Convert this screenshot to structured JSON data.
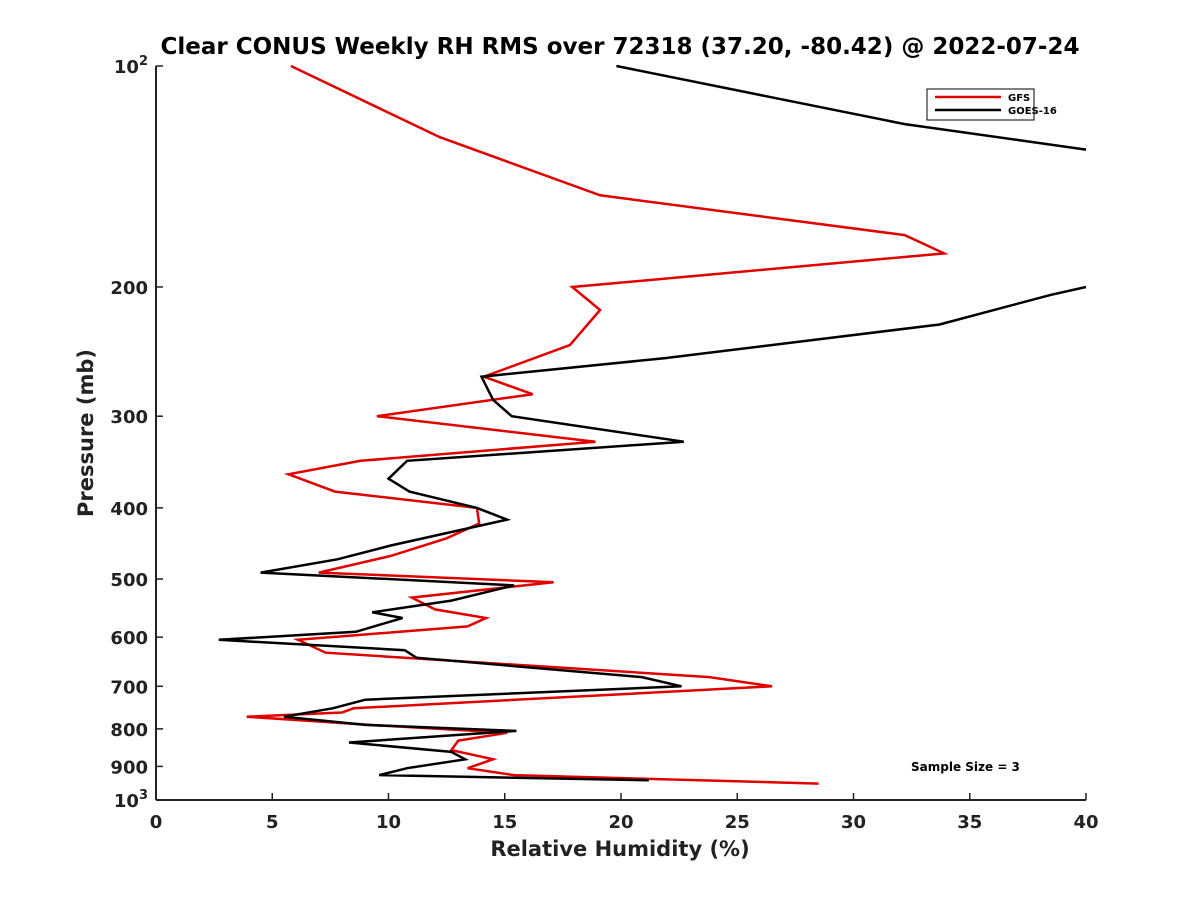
{
  "chart_data": {
    "type": "line",
    "title": "Clear CONUS Weekly RH RMS over 72318 (37.20, -80.42) @ 2022-07-24",
    "xlabel": "Relative Humidity (%)",
    "ylabel": "Pressure (mb)",
    "xlim": [
      0,
      40
    ],
    "ylim": [
      100,
      1000
    ],
    "y_scale": "log",
    "y_reversed": true,
    "x_ticks": [
      "0",
      "5",
      "10",
      "15",
      "20",
      "25",
      "30",
      "35",
      "40"
    ],
    "y_ticks": [
      {
        "value": 100,
        "base": "10",
        "exp": "2"
      },
      {
        "value": 200,
        "label": "200"
      },
      {
        "value": 300,
        "label": "300"
      },
      {
        "value": 400,
        "label": "400"
      },
      {
        "value": 500,
        "label": "500"
      },
      {
        "value": 600,
        "label": "600"
      },
      {
        "value": 700,
        "label": "700"
      },
      {
        "value": 800,
        "label": "800"
      },
      {
        "value": 900,
        "label": "900"
      },
      {
        "value": 1000,
        "base": "10",
        "exp": "3"
      }
    ],
    "legend_position": "top-right",
    "annotation": "Sample Size = 3",
    "series": [
      {
        "name": "GFS",
        "color": "#e00000",
        "points": [
          [
            5.8,
            100
          ],
          [
            12.2,
            125
          ],
          [
            19.1,
            150
          ],
          [
            32.2,
            170
          ],
          [
            33.9,
            180
          ],
          [
            17.9,
            200
          ],
          [
            19.1,
            215
          ],
          [
            17.8,
            240
          ],
          [
            14.1,
            265
          ],
          [
            16.2,
            280
          ],
          [
            9.5,
            300
          ],
          [
            18.9,
            325
          ],
          [
            8.8,
            345
          ],
          [
            5.7,
            360
          ],
          [
            7.7,
            380
          ],
          [
            13.8,
            400
          ],
          [
            13.9,
            420
          ],
          [
            12.5,
            440
          ],
          [
            10.1,
            465
          ],
          [
            7.0,
            490
          ],
          [
            17.1,
            505
          ],
          [
            11.0,
            530
          ],
          [
            12.0,
            550
          ],
          [
            14.2,
            565
          ],
          [
            13.4,
            580
          ],
          [
            6.1,
            605
          ],
          [
            7.3,
            630
          ],
          [
            23.8,
            680
          ],
          [
            26.5,
            700
          ],
          [
            8.5,
            750
          ],
          [
            8.0,
            760
          ],
          [
            3.9,
            770
          ],
          [
            9.2,
            790
          ],
          [
            15.1,
            810
          ],
          [
            13.0,
            830
          ],
          [
            12.7,
            855
          ],
          [
            14.5,
            880
          ],
          [
            13.4,
            905
          ],
          [
            15.4,
            925
          ],
          [
            28.5,
            950
          ]
        ]
      },
      {
        "name": "GOES-16",
        "color": "#000000",
        "points": [
          [
            19.8,
            100
          ],
          [
            32.2,
            120
          ],
          [
            40.0,
            130
          ],
          null,
          [
            40.0,
            200
          ],
          [
            38.5,
            205
          ],
          [
            33.7,
            225
          ],
          [
            21.9,
            250
          ],
          [
            14.0,
            265
          ],
          [
            14.5,
            285
          ],
          [
            15.3,
            300
          ],
          [
            22.7,
            325
          ],
          [
            10.8,
            345
          ],
          [
            10.0,
            365
          ],
          [
            10.9,
            380
          ],
          [
            13.8,
            400
          ],
          [
            15.1,
            415
          ],
          [
            10.1,
            450
          ],
          [
            7.8,
            470
          ],
          [
            4.5,
            490
          ],
          [
            15.4,
            510
          ],
          [
            12.7,
            535
          ],
          [
            9.3,
            555
          ],
          [
            10.6,
            565
          ],
          [
            8.6,
            590
          ],
          [
            2.7,
            605
          ],
          [
            10.7,
            625
          ],
          [
            11.2,
            640
          ],
          [
            20.9,
            680
          ],
          [
            22.6,
            700
          ],
          [
            9.0,
            730
          ],
          [
            7.6,
            750
          ],
          [
            5.5,
            770
          ],
          [
            9.0,
            790
          ],
          [
            15.5,
            805
          ],
          [
            8.3,
            835
          ],
          [
            12.7,
            860
          ],
          [
            13.3,
            880
          ],
          [
            10.8,
            905
          ],
          [
            9.6,
            925
          ],
          [
            21.2,
            940
          ]
        ]
      }
    ]
  }
}
